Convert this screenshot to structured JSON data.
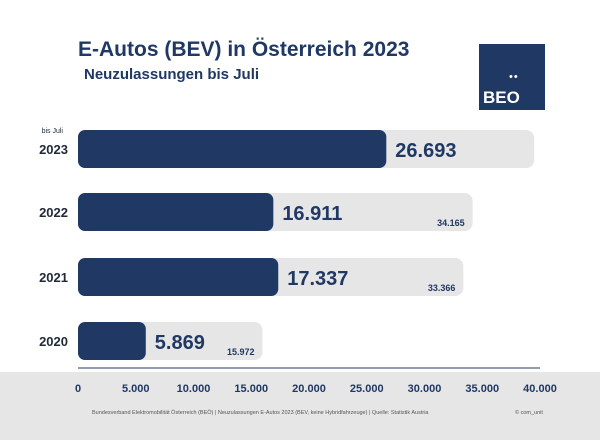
{
  "chart_data": {
    "type": "bar",
    "orientation": "horizontal",
    "title": "E-Autos (BEV) in Österreich 2023",
    "subtitle": "Neuzulassungen bis Juli",
    "categories": [
      "2023",
      "2022",
      "2021",
      "2020"
    ],
    "category_note": "bis Juli",
    "series": [
      {
        "values": [
          26693,
          16911,
          17337,
          5869
        ],
        "labels": [
          "26.693",
          "16.911",
          "17.337",
          "5.869"
        ],
        "color": "#1f3864"
      },
      {
        "values": [
          39500,
          34165,
          33366,
          15972
        ],
        "labels": [
          "",
          "34.165",
          "33.366",
          "15.972"
        ],
        "color": "#e7e6e6"
      }
    ],
    "xlim": [
      0,
      40000
    ],
    "xticks": [
      0,
      5000,
      10000,
      15000,
      20000,
      25000,
      30000,
      35000,
      40000
    ],
    "xtick_labels": [
      "0",
      "5.000",
      "10.000",
      "15.000",
      "20.000",
      "25.000",
      "30.000",
      "35.000",
      "40.000"
    ],
    "grid": false,
    "legend": "none"
  },
  "logo": {
    "text": "BEO",
    "dots": "••"
  },
  "footer": {
    "source": "Bundesverband Elektromobilität Österreich (BEÖ) | Neuzulassungen E-Autos 2023 (BEV, keine Hybridfahrzeuge) | Quelle: Statistik Austria",
    "credit": "© com_unit"
  },
  "colors": {
    "primary": "#1f3864",
    "track": "#e7e6e6",
    "footer_band": "#e7e6e6"
  }
}
